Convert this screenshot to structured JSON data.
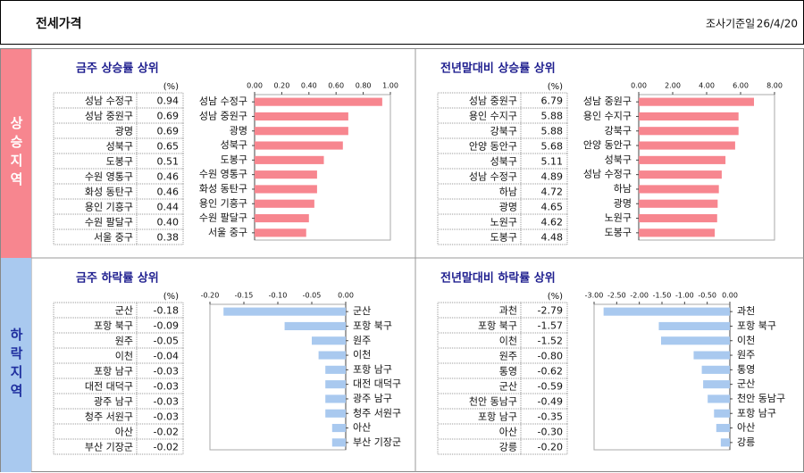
{
  "header": {
    "title": "전세가격",
    "date_label": "조사기준일",
    "date": "26/4/20"
  },
  "sections": [
    {
      "label": "상승지역",
      "color": "#f7868f",
      "text_color": "#ffffff"
    },
    {
      "label": "하락지역",
      "color": "#a9c9ef",
      "text_color": "#1f2f9f"
    }
  ],
  "chart_data": [
    {
      "type": "bar",
      "title": "금주 상승률 상위",
      "unit": "(%)",
      "color": "#f7868f",
      "categories": [
        "성남 수정구",
        "성남 중원구",
        "광명",
        "성북구",
        "도봉구",
        "수원 영통구",
        "화성 동탄구",
        "용인 기흥구",
        "수원 팔달구",
        "서울 중구"
      ],
      "values": [
        0.94,
        0.69,
        0.69,
        0.65,
        0.51,
        0.46,
        0.46,
        0.44,
        0.4,
        0.38
      ],
      "value_labels": [
        "0.94",
        "0.69",
        "0.69",
        "0.65",
        "0.51",
        "0.46",
        "0.46",
        "0.44",
        "0.40",
        "0.38"
      ],
      "xlim": [
        0,
        1
      ],
      "xticks": [
        {
          "value": 0,
          "label": "0.00"
        },
        {
          "value": 0.2,
          "label": "0.20"
        },
        {
          "value": 0.4,
          "label": "0.40"
        },
        {
          "value": 0.6,
          "label": "0.60"
        },
        {
          "value": 0.8,
          "label": "0.80"
        },
        {
          "value": 1,
          "label": "1.00"
        }
      ]
    },
    {
      "type": "bar",
      "title": "전년말대비 상승률 상위",
      "unit": "(%)",
      "color": "#f7868f",
      "categories": [
        "성남 중원구",
        "용인 수지구",
        "강북구",
        "안양 동안구",
        "성북구",
        "성남 수정구",
        "하남",
        "광명",
        "노원구",
        "도봉구"
      ],
      "values": [
        6.79,
        5.88,
        5.88,
        5.68,
        5.11,
        4.89,
        4.72,
        4.65,
        4.62,
        4.48
      ],
      "value_labels": [
        "6.79",
        "5.88",
        "5.88",
        "5.68",
        "5.11",
        "4.89",
        "4.72",
        "4.65",
        "4.62",
        "4.48"
      ],
      "xlim": [
        0,
        8
      ],
      "xticks": [
        {
          "value": 0,
          "label": "0.00"
        },
        {
          "value": 2,
          "label": "2.00"
        },
        {
          "value": 4,
          "label": "4.00"
        },
        {
          "value": 6,
          "label": "6.00"
        },
        {
          "value": 8,
          "label": "8.00"
        }
      ]
    },
    {
      "type": "bar",
      "title": "금주 하락률 상위",
      "unit": "(%)",
      "color": "#a9c9ef",
      "categories": [
        "군산",
        "포항 북구",
        "원주",
        "이천",
        "포항 남구",
        "대전 대덕구",
        "광주 남구",
        "청주 서원구",
        "아산",
        "부산 기장군"
      ],
      "values": [
        -0.18,
        -0.09,
        -0.05,
        -0.04,
        -0.03,
        -0.03,
        -0.03,
        -0.03,
        -0.02,
        -0.02
      ],
      "value_labels": [
        "-0.18",
        "-0.09",
        "-0.05",
        "-0.04",
        "-0.03",
        "-0.03",
        "-0.03",
        "-0.03",
        "-0.02",
        "-0.02"
      ],
      "xlim": [
        -0.2,
        0
      ],
      "xticks": [
        {
          "value": -0.2,
          "label": "-0.20"
        },
        {
          "value": -0.15,
          "label": "-0.15"
        },
        {
          "value": -0.1,
          "label": "-0.10"
        },
        {
          "value": -0.05,
          "label": "-0.05"
        },
        {
          "value": 0,
          "label": "0.00"
        }
      ]
    },
    {
      "type": "bar",
      "title": "전년말대비 하락률 상위",
      "unit": "(%)",
      "color": "#a9c9ef",
      "categories": [
        "과천",
        "포항 북구",
        "이천",
        "원주",
        "통영",
        "군산",
        "천안 동남구",
        "포항 남구",
        "아산",
        "강릉"
      ],
      "values": [
        -2.79,
        -1.57,
        -1.52,
        -0.8,
        -0.62,
        -0.59,
        -0.49,
        -0.35,
        -0.3,
        -0.2
      ],
      "value_labels": [
        "-2.79",
        "-1.57",
        "-1.52",
        "-0.80",
        "-0.62",
        "-0.59",
        "-0.49",
        "-0.35",
        "-0.30",
        "-0.20"
      ],
      "xlim": [
        -3,
        0
      ],
      "xticks": [
        {
          "value": -3,
          "label": "-3.00"
        },
        {
          "value": -2.5,
          "label": "-2.50"
        },
        {
          "value": -2,
          "label": "-2.00"
        },
        {
          "value": -1.5,
          "label": "-1.50"
        },
        {
          "value": -1,
          "label": "-1.00"
        },
        {
          "value": -0.5,
          "label": "-0.50"
        },
        {
          "value": 0,
          "label": "0.00"
        }
      ]
    }
  ]
}
